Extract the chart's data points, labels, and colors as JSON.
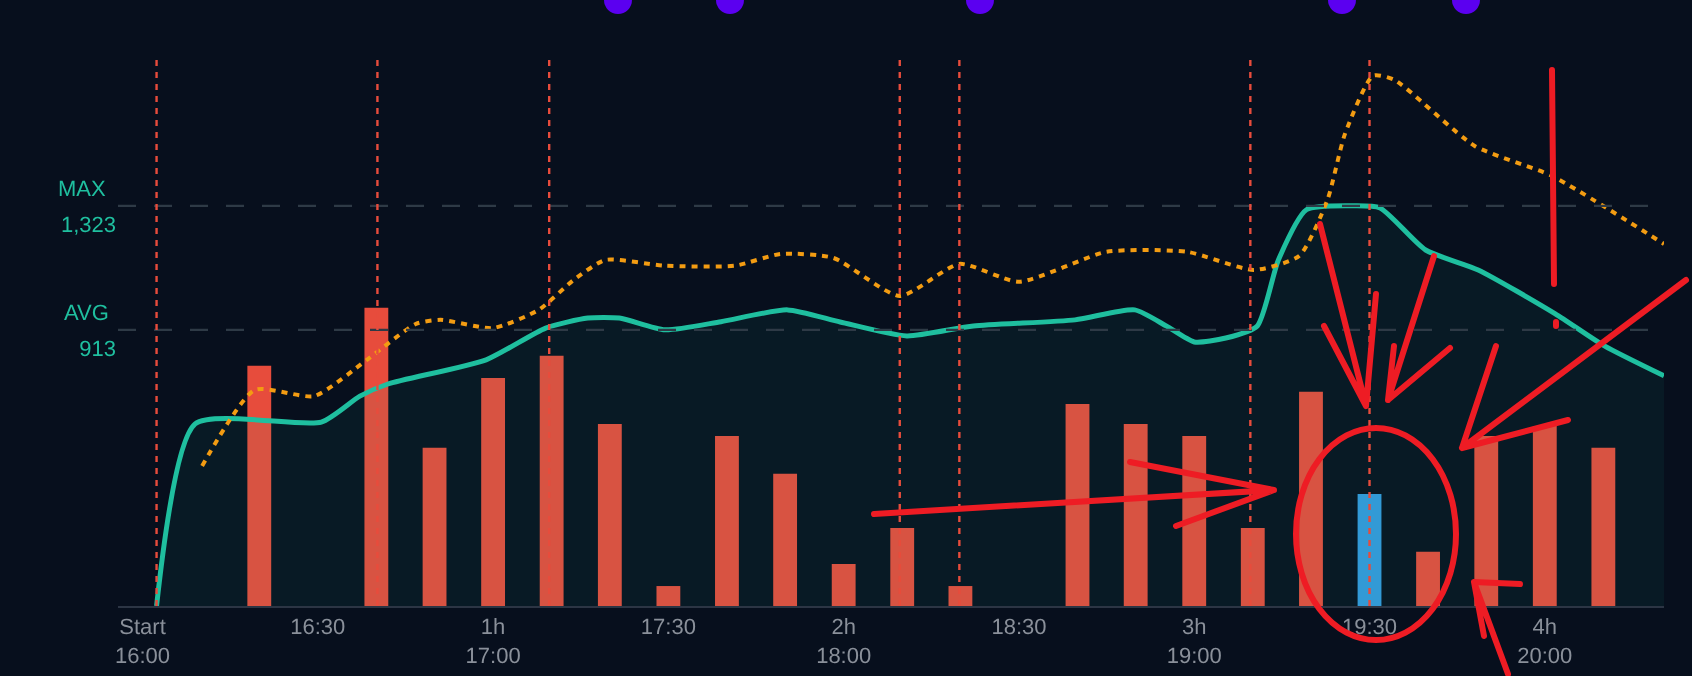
{
  "chart_data": {
    "type": "bar",
    "xlim": [
      15.93,
      20.34
    ],
    "ylim": [
      0,
      1825
    ],
    "xticks": [
      {
        "value": 16,
        "label": "Start\n16:00"
      },
      {
        "value": 16.5,
        "label": "16:30"
      },
      {
        "value": 17,
        "label": "1h\n17:00"
      },
      {
        "value": 17.5,
        "label": "17:30"
      },
      {
        "value": 18,
        "label": "2h\n18:00"
      },
      {
        "value": 18.5,
        "label": "18:30"
      },
      {
        "value": 19,
        "label": "3h\n19:00"
      },
      {
        "value": 19.5,
        "label": "19:30"
      },
      {
        "value": 20,
        "label": "4h\n20:00"
      }
    ],
    "yticks": [
      {
        "value": 1323,
        "label": "1,323"
      },
      913
    ],
    "series": [
      {
        "type": "area",
        "color": "#1fbf9f",
        "x": [
          16.04,
          16.15,
          16.51,
          16.62,
          16.7,
          16.98,
          17.15,
          17.27,
          17.36,
          17.49,
          17.65,
          17.84,
          17.99,
          18.18,
          18.37,
          18.66,
          18.83,
          18.92,
          19.0,
          19.09,
          19.18,
          19.24,
          19.32,
          19.45,
          19.53,
          19.66,
          19.81,
          20.03,
          20.17,
          20.34
        ],
        "values": [
          0,
          602,
          608,
          694,
          734,
          814,
          919,
          952,
          952,
          913,
          940,
          979,
          939,
          893,
          926,
          946,
          979,
          926,
          873,
          886,
          926,
          1144,
          1310,
          1323,
          1316,
          1177,
          1111,
          966,
          860,
          761
        ]
      },
      {
        "x": [
          16.333,
          16.667,
          16.833,
          17.0,
          17.167,
          17.333,
          17.5,
          17.667,
          17.833,
          18.0,
          18.167,
          18.333,
          18.667,
          18.833,
          19.0,
          19.167,
          19.333,
          19.5,
          19.667,
          19.833,
          20.0,
          20.167
        ],
        "values": [
          794,
          986,
          523,
          754,
          827,
          602,
          66,
          562,
          437,
          139,
          258,
          66,
          668,
          602,
          562,
          258,
          708,
          370,
          179,
          562,
          595,
          523
        ],
        "colors": [
          "#e74c3c",
          "#e74c3c",
          "#e74c3c",
          "#e74c3c",
          "#e74c3c",
          "#e74c3c",
          "#e74c3c",
          "#e74c3c",
          "#e74c3c",
          "#e74c3c",
          "#e74c3c",
          "#e74c3c",
          "#e74c3c",
          "#e74c3c",
          "#e74c3c",
          "#e74c3c",
          "#e74c3c",
          "#3498db",
          "#e74c3c",
          "#e74c3c",
          "#e74c3c",
          "#e74c3c"
        ]
      },
      {
        "type": "line",
        "line_style": "dotted",
        "color": "#f39c12",
        "x": [
          16.17,
          16.32,
          16.49,
          16.64,
          16.78,
          16.85,
          17.0,
          17.13,
          17.23,
          17.32,
          17.49,
          17.69,
          17.82,
          17.97,
          18.16,
          18.33,
          18.5,
          18.75,
          18.98,
          19.17,
          19.3,
          19.38,
          19.43,
          19.51,
          19.57,
          19.8,
          20.02,
          20.34
        ],
        "values": [
          463,
          714,
          694,
          814,
          933,
          946,
          919,
          979,
          1078,
          1144,
          1125,
          1125,
          1164,
          1151,
          1025,
          1131,
          1072,
          1171,
          1171,
          1111,
          1158,
          1343,
          1561,
          1753,
          1740,
          1521,
          1422,
          1197
        ]
      }
    ],
    "ref_lines": [
      {
        "axis": "y",
        "value": 1323,
        "label": "MAX",
        "color": "#2e3a46",
        "line_style": "dashed"
      },
      {
        "axis": "y",
        "value": 913,
        "label": "AVG",
        "color": "#2e3a46",
        "line_style": "dashed"
      },
      {
        "axis": "x",
        "value": 16.04,
        "color": "#e74c3c",
        "line_style": "dotted"
      },
      {
        "axis": "x",
        "value": 16.67,
        "color": "#e74c3c",
        "line_style": "dotted"
      },
      {
        "axis": "x",
        "value": 17.16,
        "color": "#e74c3c",
        "line_style": "dotted"
      },
      {
        "axis": "x",
        "value": 18.16,
        "color": "#e74c3c",
        "line_style": "dotted"
      },
      {
        "axis": "x",
        "value": 18.33,
        "color": "#e74c3c",
        "line_style": "dotted"
      },
      {
        "axis": "x",
        "value": 19.16,
        "color": "#e74c3c",
        "line_style": "dotted"
      },
      {
        "axis": "x",
        "value": 19.5,
        "color": "#e74c3c",
        "line_style": "dotted"
      }
    ]
  }
}
